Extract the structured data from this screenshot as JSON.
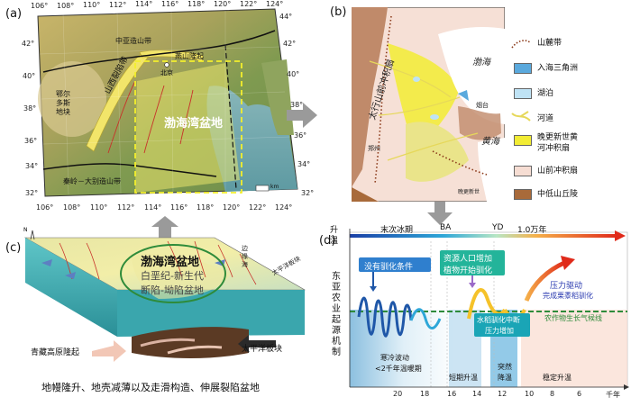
{
  "panels": {
    "a": {
      "label": "(a)",
      "lon_top": [
        "106°",
        "108°",
        "110°",
        "112°",
        "114°",
        "116°",
        "118°",
        "120°",
        "122°",
        "124°"
      ],
      "lon_bottom": [
        "106°",
        "108°",
        "110°",
        "112°",
        "114°",
        "116°",
        "118°",
        "120°",
        "122°",
        "124°"
      ],
      "lat_left": [
        "42°",
        "40°",
        "38°",
        "36°",
        "34°",
        "32°"
      ],
      "lat_right": [
        "44°",
        "42°",
        "40°",
        "38°",
        "36°",
        "34°",
        "32°"
      ],
      "labels": {
        "zhongya": "中亚造山带",
        "yanshan": "燕山隆起",
        "ordos": "鄂尔多斯地块",
        "shanxi": "山西裂陷带",
        "beijing": "北京",
        "basin": "渤海湾盆地",
        "qinling": "秦岭－大别造山带",
        "scale": "km"
      }
    },
    "b": {
      "label": "(b)",
      "labels": {
        "bohai": "渤海",
        "huanghai": "黄海",
        "taihang": "太行山前冲积扇",
        "yantai": "烟台",
        "zhengzhou": "郑州",
        "wanshan": "晚更新世"
      },
      "legend": [
        {
          "label": "山麓带",
          "type": "dotted",
          "color": "#8b3a1a"
        },
        {
          "label": "入海三角洲",
          "type": "fill",
          "color": "#5aa9dd"
        },
        {
          "label": "湖泊",
          "type": "fill",
          "color": "#bfe3f5"
        },
        {
          "label": "河道",
          "type": "river",
          "color": "#e6d85a"
        },
        {
          "label": "晚更新世黄河冲积扇",
          "lines": [
            "晚更新世黄",
            "河冲积扇"
          ],
          "type": "fill",
          "color": "#f2ec34"
        },
        {
          "label": "山前冲积扇",
          "type": "fill",
          "color": "#f6ddd3"
        },
        {
          "label": "中低山丘陵",
          "type": "fill",
          "color": "#a86a3a"
        }
      ]
    },
    "c": {
      "label": "(c)",
      "labels": {
        "basin_title": "渤海湾盆地",
        "basin_desc1": "白垩纪-新生代",
        "basin_desc2": "断陷-坳陷盆地",
        "qingzang": "青藏高原隆起",
        "pacific": "太平洋板块",
        "pacific_block": "太平洋板块",
        "edge": "边缘海",
        "north": "N",
        "caption": "地幔隆升、地壳减薄以及走滑构造、伸展裂陷盆地"
      }
    },
    "d": {
      "label": "(d)",
      "y_top": "升",
      "y_top2": "温",
      "y_axis_title": [
        "东",
        "亚",
        "农",
        "业",
        "起",
        "源",
        "机",
        "制"
      ],
      "top_events": [
        "末次冰期",
        "BA",
        "YD",
        "1.0万年"
      ],
      "x_ticks": [
        "20",
        "18",
        "16",
        "14",
        "12",
        "10",
        "8",
        "6"
      ],
      "x_unit": "千年",
      "boxes": {
        "b1": "没有驯化条件",
        "b2a": "资源人口增加",
        "b2b": "植物开始驯化",
        "b3a": "水稻驯化中断",
        "b3b": "压力增加",
        "b4a": "压力驱动",
        "b4b": "完成栗黍稻驯化"
      },
      "labels": {
        "crop": "农作物生长气候线",
        "cold1": "寒冷波动",
        "cold2": "<2千年温暖期",
        "short": "短期升温",
        "sudden1": "突然",
        "sudden2": "降温",
        "stable": "稳定升温"
      }
    }
  }
}
